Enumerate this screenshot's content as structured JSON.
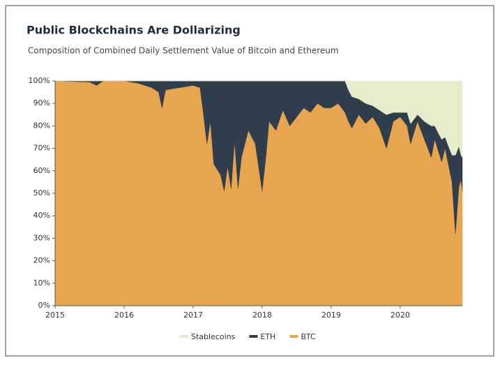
{
  "chart_data": {
    "type": "stacked_area_100",
    "title": "Public Blockchains Are Dollarizing",
    "subtitle": "Composition of Combined Daily Settlement Value of Bitcoin and Ethereum",
    "x": [
      2015.0,
      2015.5,
      2015.6,
      2015.7,
      2016.0,
      2016.2,
      2016.4,
      2016.5,
      2016.55,
      2016.6,
      2016.8,
      2017.0,
      2017.1,
      2017.15,
      2017.2,
      2017.25,
      2017.3,
      2017.4,
      2017.45,
      2017.5,
      2017.55,
      2017.6,
      2017.65,
      2017.7,
      2017.8,
      2017.9,
      2018.0,
      2018.05,
      2018.1,
      2018.2,
      2018.3,
      2018.4,
      2018.5,
      2018.6,
      2018.7,
      2018.8,
      2018.9,
      2019.0,
      2019.1,
      2019.2,
      2019.25,
      2019.3,
      2019.4,
      2019.5,
      2019.6,
      2019.7,
      2019.8,
      2019.9,
      2020.0,
      2020.1,
      2020.15,
      2020.25,
      2020.35,
      2020.45,
      2020.5,
      2020.6,
      2020.65,
      2020.75,
      2020.8,
      2020.85,
      2020.88,
      2020.9
    ],
    "series": [
      {
        "name": "BTC",
        "color": "#e8a550",
        "values": [
          100,
          99.5,
          98,
          100,
          100,
          99,
          97,
          95,
          88,
          96,
          97,
          98,
          97,
          85,
          72,
          82,
          63,
          58,
          51,
          62,
          52,
          73,
          52,
          66,
          78,
          72,
          51,
          65,
          82,
          78,
          87,
          80,
          84,
          88,
          86,
          90,
          88,
          88,
          90,
          86,
          82,
          79,
          85,
          81,
          84,
          79,
          70,
          82,
          84,
          80,
          72,
          82,
          74,
          66,
          74,
          64,
          70,
          55,
          32,
          53,
          56,
          51
        ]
      },
      {
        "name": "ETH",
        "color": "#2f3d4c",
        "values": [
          0,
          0.5,
          2,
          0,
          0,
          1,
          3,
          5,
          12,
          4,
          3,
          2,
          3,
          15,
          28,
          18,
          37,
          42,
          49,
          38,
          48,
          27,
          48,
          34,
          22,
          28,
          49,
          35,
          18,
          22,
          13,
          20,
          16,
          12,
          14,
          10,
          12,
          12,
          10,
          14,
          14,
          14,
          7,
          9,
          5,
          8,
          15,
          4,
          2,
          6,
          9,
          3,
          8,
          14,
          6,
          10,
          5,
          12,
          35,
          18,
          11,
          15
        ]
      },
      {
        "name": "Stablecoins",
        "color": "#e6ecca",
        "values": [
          0,
          0,
          0,
          0,
          0,
          0,
          0,
          0,
          0,
          0,
          0,
          0,
          0,
          0,
          0,
          0,
          0,
          0,
          0,
          0,
          0,
          0,
          0,
          0,
          0,
          0,
          0,
          0,
          0,
          0,
          0,
          0,
          0,
          0,
          0,
          0,
          0,
          0,
          0,
          0,
          4,
          7,
          8,
          10,
          11,
          13,
          15,
          14,
          14,
          14,
          19,
          15,
          18,
          20,
          20,
          26,
          25,
          33,
          33,
          29,
          33,
          34
        ]
      }
    ],
    "xlim": [
      2015,
      2020.9
    ],
    "xticks": [
      2015,
      2016,
      2017,
      2018,
      2019,
      2020
    ],
    "ylim": [
      0,
      100
    ],
    "yticks": [
      {
        "value": 0,
        "label": "0%"
      },
      {
        "value": 10,
        "label": "10%"
      },
      {
        "value": 20,
        "label": "20%"
      },
      {
        "value": 30,
        "label": "30%"
      },
      {
        "value": 40,
        "label": "40%"
      },
      {
        "value": 50,
        "label": "50%"
      },
      {
        "value": 60,
        "label": "60%"
      },
      {
        "value": 70,
        "label": "70%"
      },
      {
        "value": 80,
        "label": "80%"
      },
      {
        "value": 90,
        "label": "90%"
      },
      {
        "value": 100,
        "label": "100%"
      }
    ],
    "legend": "bottom"
  }
}
